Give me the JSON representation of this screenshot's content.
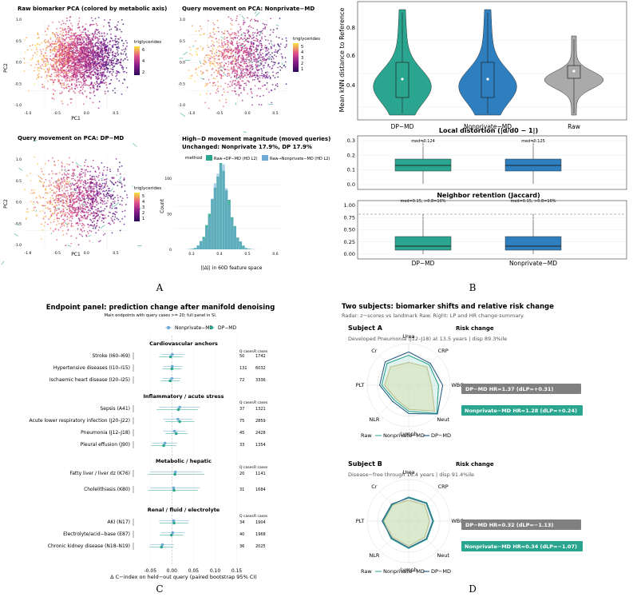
{
  "panel_letters": [
    "A",
    "B",
    "C",
    "D"
  ],
  "colors": {
    "dp": "#2aa58f",
    "np": "#2e7fbf",
    "raw": "#aaaaaa",
    "grid": "#ececec"
  },
  "panelA": {
    "pca1": {
      "title": "Raw biomarker PCA (colored by metabolic axis)",
      "xlabel": "PC1",
      "ylabel": "PC2",
      "legend": "triglycerides",
      "legend_ticks": [
        "6",
        "4",
        "2"
      ],
      "xticks": [
        "-1.0",
        "-0.5",
        "0.0",
        "0.5"
      ],
      "yticks": [
        "1.0",
        "0.5",
        "0.0",
        "-0.5",
        "-1.0"
      ]
    },
    "pca2": {
      "title": "Query movement on PCA: Nonprivate−MD",
      "legend": "triglycerides",
      "legend_ticks": [
        "5",
        "4",
        "3",
        "2",
        "1"
      ],
      "xticks": [
        "-1.0",
        "-0.5",
        "0.0",
        "0.5"
      ],
      "yticks": [
        "1.0",
        "0.5",
        "0.0",
        "-0.5",
        "-1.0"
      ]
    },
    "pca3": {
      "title": "Query movement on PCA: DP−MD",
      "xlabel": "PC1",
      "ylabel": "PC2",
      "legend": "triglycerides",
      "legend_ticks": [
        "5",
        "4",
        "3",
        "2",
        "1"
      ],
      "xticks": [
        "-1.0",
        "-0.5",
        "0.0",
        "0.5"
      ],
      "yticks": [
        "1.0",
        "0.5",
        "0.0",
        "-0.5",
        "-1.0"
      ]
    },
    "hist": {
      "title": "High−D movement magnitude (moved queries)",
      "subtitle": "Unchanged: Nonprivate 17.9%, DP 17.9%",
      "legend_label": "method",
      "legend_items": [
        "Raw→DP−MD (HD L2)",
        "Raw→Nonprivate−MD (HD L2)"
      ],
      "xlabel": "||Δ|| in 60D feature space",
      "ylabel": "Count",
      "yticks": [
        "0",
        "50",
        "100"
      ],
      "xticks": [
        "0.3",
        "0.4",
        "0.5",
        "0.6"
      ]
    }
  },
  "panelB": {
    "violin": {
      "ylabel": "Mean kNN distance to Reference",
      "yticks": [
        "0.8",
        "0.6",
        "0.4"
      ],
      "groups": [
        "DP−MD",
        "Nonprivate−MD",
        "Raw"
      ]
    },
    "box1": {
      "title": "Local distortion (|d/d0 − 1|)",
      "ann": [
        "med=0.124",
        "med=0.125"
      ],
      "yticks": [
        "0.3",
        "0.2",
        "0.1",
        "0.0"
      ]
    },
    "box2": {
      "title": "Neighbor retention (Jaccard)",
      "ann": [
        "med=0.15, >0.8=16%",
        "med=0.15, >0.8=16%"
      ],
      "yticks": [
        "1.00",
        "0.75",
        "0.50",
        "0.25",
        "0.00"
      ],
      "xlabels": [
        "DP−MD",
        "Nonprivate−MD"
      ]
    }
  },
  "panelC": {
    "title": "Endpoint panel: prediction change after manifold denoising",
    "subtitle": "Main endpoints with query cases >= 20; full panel in SI.",
    "legend": [
      "Nonprivate−MD",
      "DP−MD"
    ],
    "col_q": "Q cases",
    "col_r": "R cases",
    "xticks": [
      "-0.05",
      "0.00",
      "0.05",
      "0.10",
      "0.15"
    ],
    "xlabel": "Δ C−index on held−out query (paired bootstrap 95% CI)",
    "groups": [
      {
        "name": "Cardiovascular anchors",
        "rows": [
          {
            "label": "Stroke (I60–I69)",
            "q": "50",
            "r": "1742"
          },
          {
            "label": "Hypertensive diseases (I10–I15)",
            "q": "131",
            "r": "6032"
          },
          {
            "label": "Ischaemic heart disease (I20–I25)",
            "q": "72",
            "r": "3336"
          }
        ]
      },
      {
        "name": "Inflammatory / acute stress",
        "rows": [
          {
            "label": "Sepsis (A41)",
            "q": "37",
            "r": "1321"
          },
          {
            "label": "Acute lower respiratory infection (J20–J22)",
            "q": "75",
            "r": "2859"
          },
          {
            "label": "Pneumonia (J12–J18)",
            "q": "45",
            "r": "2428"
          },
          {
            "label": "Pleural effusion (J90)",
            "q": "33",
            "r": "1354"
          }
        ]
      },
      {
        "name": "Metabolic / hepatic",
        "rows": [
          {
            "label": "Fatty liver / liver dz (K76)",
            "q": "20",
            "r": "1141"
          },
          {
            "label": "Cholelithiasis (K80)",
            "q": "31",
            "r": "1684"
          }
        ]
      },
      {
        "name": "Renal / fluid / electrolyte",
        "rows": [
          {
            "label": "AKI (N17)",
            "q": "34",
            "r": "1904"
          },
          {
            "label": "Electrolyte/acid−base (E87)",
            "q": "40",
            "r": "1968"
          },
          {
            "label": "Chronic kidney disease (N18–N19)",
            "q": "36",
            "r": "2025"
          }
        ]
      }
    ]
  },
  "chart_data": {
    "type": "scatter",
    "title": "Endpoint panel: prediction change after manifold denoising",
    "xlabel": "Δ C−index on held−out query (paired bootstrap 95% CI)",
    "xlim": [
      -0.08,
      0.16
    ],
    "series": [
      {
        "name": "Nonprivate−MD",
        "values": [
          0.001,
          0.001,
          0.0,
          0.018,
          0.014,
          0.006,
          -0.016,
          0.008,
          0.004,
          0.004,
          0.002,
          -0.022
        ],
        "ci_low": [
          -0.025,
          -0.02,
          -0.022,
          -0.03,
          -0.02,
          -0.02,
          -0.045,
          -0.05,
          -0.05,
          -0.03,
          -0.025,
          -0.05
        ],
        "ci_high": [
          0.03,
          0.025,
          0.02,
          0.065,
          0.048,
          0.032,
          0.012,
          0.07,
          0.065,
          0.04,
          0.03,
          0.005
        ]
      },
      {
        "name": "DP−MD",
        "values": [
          -0.003,
          0.0,
          -0.004,
          0.015,
          0.018,
          0.01,
          -0.019,
          0.007,
          0.005,
          0.005,
          -0.001,
          -0.024
        ],
        "ci_low": [
          -0.03,
          -0.022,
          -0.026,
          -0.035,
          -0.015,
          -0.015,
          -0.048,
          -0.055,
          -0.055,
          -0.028,
          -0.028,
          -0.052
        ],
        "ci_high": [
          0.025,
          0.022,
          0.018,
          0.06,
          0.052,
          0.036,
          0.01,
          0.075,
          0.06,
          0.038,
          0.026,
          0.003
        ]
      }
    ]
  },
  "panelD": {
    "title": "Two subjects: biomarker shifts and relative risk change",
    "subtitle": "Radar: z−scores vs landmark Raw. Right: LP and HR change summary.",
    "axes": [
      "Urea",
      "CRP",
      "WBC",
      "Neut",
      "Lymph",
      "NLR",
      "PLT",
      "Cr"
    ],
    "legend_label": "Raw",
    "legend_items": [
      "Nonprivate−MD",
      "DP−MD"
    ],
    "subjects": [
      {
        "name": "Subject A",
        "desc": "Developed Pneumonia (J12–J18) at 13.5 years | disp 89.3%ile",
        "risk": "Risk change",
        "dp_box": "DP−MD      HR=1.37  (dLP=+0.31)",
        "np_box": "Nonprivate−MD  HR=1.28  (dLP=+0.24)",
        "raw": [
          0.55,
          0.62,
          0.55,
          0.88,
          0.58,
          0.45,
          0.58,
          0.62
        ],
        "np": [
          0.72,
          0.7,
          0.72,
          0.96,
          0.63,
          0.5,
          0.65,
          0.74
        ],
        "dp": [
          0.8,
          0.74,
          0.82,
          0.98,
          0.68,
          0.55,
          0.7,
          0.8
        ]
      },
      {
        "name": "Subject B",
        "desc": "Disease−free through 16.4 years | disp 91.4%ile",
        "risk": "Risk change",
        "dp_box": "DP−MD      HR=0.32  (dLP=−1.13)",
        "np_box": "Nonprivate−MD  HR=0.34  (dLP=−1.07)",
        "raw": [
          0.5,
          0.55,
          0.5,
          0.55,
          0.6,
          0.55,
          0.6,
          0.55
        ],
        "np": [
          0.58,
          0.62,
          0.6,
          0.62,
          0.66,
          0.6,
          0.62,
          0.56
        ],
        "dp": [
          0.56,
          0.6,
          0.58,
          0.6,
          0.64,
          0.58,
          0.64,
          0.58
        ]
      }
    ]
  }
}
